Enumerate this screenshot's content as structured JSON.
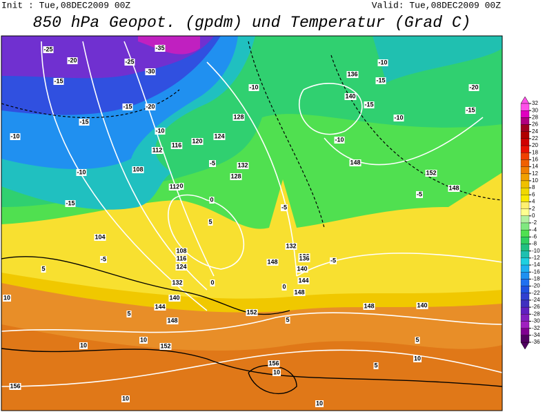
{
  "header": {
    "init": "Init : Tue,08DEC2009 00Z",
    "valid": "Valid: Tue,08DEC2009 00Z",
    "title": "850 hPa Geopot. (gpdm) und Temperatur (Grad C)"
  },
  "colorbar": {
    "ticks": [
      32,
      30,
      28,
      26,
      24,
      22,
      20,
      18,
      16,
      14,
      12,
      10,
      8,
      6,
      4,
      2,
      0,
      -2,
      -4,
      -6,
      -8,
      -10,
      -12,
      -14,
      -16,
      -18,
      -20,
      -22,
      -24,
      -26,
      -28,
      -30,
      -32,
      -34,
      -36
    ],
    "colors": [
      "#ff50e8",
      "#e000c0",
      "#b00080",
      "#a00020",
      "#b00000",
      "#d00000",
      "#e81000",
      "#f04000",
      "#f06000",
      "#f08000",
      "#f0a000",
      "#f0c000",
      "#f0d800",
      "#f8e800",
      "#fff070",
      "#ffff90",
      "#b0f0a0",
      "#80e880",
      "#50e050",
      "#30d060",
      "#20c080",
      "#20c0b0",
      "#20d0e0",
      "#20b0f0",
      "#2090f0",
      "#2070f0",
      "#2050e0",
      "#3040d0",
      "#4030c0",
      "#6020c0",
      "#8020c0",
      "#a020c0",
      "#800090",
      "#500060"
    ]
  },
  "map_labels": [
    -25,
    -20,
    -25,
    -30,
    -35,
    -15,
    -15,
    -20,
    -10,
    -15,
    -10,
    -15,
    108,
    112,
    116,
    120,
    124,
    128,
    132,
    128,
    112,
    0,
    104,
    -5,
    -10,
    -5,
    0,
    108,
    116,
    124,
    132,
    140,
    144,
    148,
    152,
    156,
    10,
    10,
    5,
    5,
    10,
    140,
    136,
    144,
    148,
    152,
    148,
    -10,
    -15,
    -10,
    -15,
    -20,
    -15,
    -10,
    -5,
    -10,
    148,
    152,
    148,
    140,
    136,
    5,
    5,
    10,
    156,
    10,
    10,
    0,
    -5,
    132,
    136,
    140,
    148,
    0,
    5,
    10,
    -5,
    5
  ]
}
